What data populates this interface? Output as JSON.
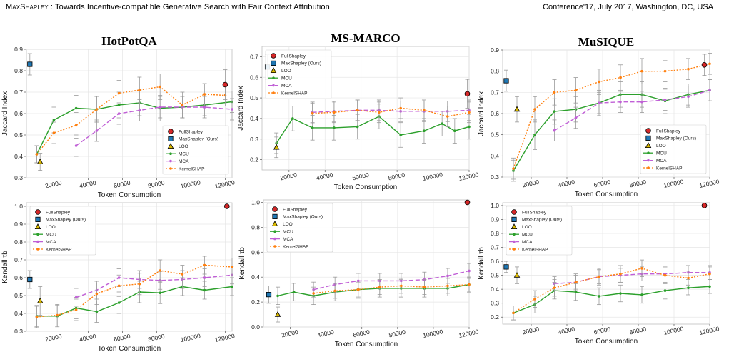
{
  "header": {
    "left_smallcaps": "MaxShapley",
    "left_rest": " : Towards Incentive-compatible Generative Search with Fair Context Attribution",
    "right": "Conference'17, July 2017, Washington, DC, USA"
  },
  "styles": {
    "FullShapley": {
      "color": "#d62728",
      "marker": "circle"
    },
    "MaxShapley (Ours)": {
      "color": "#1f77b4",
      "marker": "square"
    },
    "LOO": {
      "color": "#d9b800",
      "marker": "triangle"
    },
    "MCU": {
      "color": "#2ca02c",
      "marker": "dot",
      "dash": ""
    },
    "MCA": {
      "color": "#c05fd6",
      "marker": "dot",
      "dash": "6,3"
    },
    "KernelSHAP": {
      "color": "#ff7f0e",
      "marker": "dot",
      "dash": "2,2"
    }
  },
  "chart_data": [
    {
      "type": "line",
      "title": "HotPotQA",
      "xlabel": "Token Consumption",
      "ylabel": "Jaccard Index",
      "xlim": [
        4000,
        124000
      ],
      "ylim": [
        0.3,
        0.9
      ],
      "xticks": [
        20000,
        40000,
        60000,
        80000,
        100000,
        120000
      ],
      "yticks": [
        "0.3",
        "0.4",
        "0.5",
        "0.6",
        "0.7",
        "0.8",
        "0.9"
      ],
      "legend": "lower-right",
      "points": [
        {
          "name": "FullShapley",
          "x": 120000,
          "y": 0.735,
          "err": 0.07
        },
        {
          "name": "MaxShapley (Ours)",
          "x": 6000,
          "y": 0.83,
          "err": 0.05
        },
        {
          "name": "LOO",
          "x": 12000,
          "y": 0.375,
          "err": 0.04
        }
      ],
      "series": [
        {
          "name": "MCU",
          "x": [
            10000,
            20000,
            33000,
            45000,
            58000,
            70000,
            82000,
            95000,
            108000,
            124000
          ],
          "y": [
            0.41,
            0.57,
            0.625,
            0.62,
            0.64,
            0.65,
            0.625,
            0.63,
            0.64,
            0.655
          ],
          "err": [
            0.04,
            0.06,
            0.06,
            0.06,
            0.06,
            0.06,
            0.06,
            0.05,
            0.05,
            0.05
          ]
        },
        {
          "name": "MCA",
          "x": [
            33000,
            45000,
            58000,
            70000,
            82000,
            95000,
            108000,
            124000
          ],
          "y": [
            0.45,
            0.52,
            0.6,
            0.615,
            0.63,
            0.63,
            0.63,
            0.62
          ],
          "err": [
            0.05,
            0.05,
            0.05,
            0.05,
            0.05,
            0.05,
            0.05,
            0.05
          ]
        },
        {
          "name": "KernelSHAP",
          "x": [
            10000,
            20000,
            33000,
            45000,
            58000,
            70000,
            82000,
            95000,
            108000,
            120000
          ],
          "y": [
            0.41,
            0.51,
            0.545,
            0.62,
            0.695,
            0.71,
            0.725,
            0.64,
            0.69,
            0.685
          ],
          "err": [
            0.04,
            0.05,
            0.06,
            0.06,
            0.06,
            0.06,
            0.06,
            0.06,
            0.05,
            0.05
          ]
        }
      ]
    },
    {
      "type": "line",
      "title": "MS-MARCO",
      "xlabel": "Token Consumption",
      "ylabel": "Jaccard Index",
      "xlim": [
        5000,
        120000
      ],
      "ylim": [
        0.15,
        0.75
      ],
      "xticks": [
        20000,
        40000,
        60000,
        80000,
        100000,
        120000
      ],
      "yticks": [
        "0.2",
        "0.3",
        "0.4",
        "0.5",
        "0.6",
        "0.7"
      ],
      "legend": "top-left",
      "points": [
        {
          "name": "FullShapley",
          "x": 119000,
          "y": 0.52,
          "err": 0.07
        },
        {
          "name": "MaxShapley (Ours)",
          "x": 8000,
          "y": 0.65,
          "err": 0.06
        },
        {
          "name": "LOO",
          "x": 13000,
          "y": 0.26,
          "err": 0.05
        }
      ],
      "series": [
        {
          "name": "MCU",
          "x": [
            13000,
            22000,
            33000,
            45000,
            58000,
            70000,
            82000,
            95000,
            105000,
            112000,
            120000
          ],
          "y": [
            0.28,
            0.4,
            0.355,
            0.355,
            0.36,
            0.41,
            0.32,
            0.34,
            0.375,
            0.34,
            0.36
          ],
          "err": [
            0.05,
            0.06,
            0.06,
            0.06,
            0.06,
            0.06,
            0.06,
            0.06,
            0.06,
            0.06,
            0.06
          ]
        },
        {
          "name": "MCA",
          "x": [
            33000,
            45000,
            58000,
            70000,
            82000,
            95000,
            108000,
            120000
          ],
          "y": [
            0.43,
            0.435,
            0.44,
            0.44,
            0.435,
            0.435,
            0.435,
            0.44
          ],
          "err": [
            0.05,
            0.05,
            0.05,
            0.05,
            0.05,
            0.05,
            0.05,
            0.05
          ]
        },
        {
          "name": "KernelSHAP",
          "x": [
            33000,
            45000,
            58000,
            70000,
            82000,
            95000,
            108000,
            120000
          ],
          "y": [
            0.425,
            0.43,
            0.44,
            0.43,
            0.45,
            0.44,
            0.41,
            0.43
          ],
          "err": [
            0.05,
            0.05,
            0.05,
            0.05,
            0.05,
            0.05,
            0.05,
            0.05
          ]
        }
      ]
    },
    {
      "type": "line",
      "title": "MuSIQUE",
      "xlabel": "Token Consumption",
      "ylabel": "Jaccard Index",
      "xlim": [
        4000,
        120000
      ],
      "ylim": [
        0.3,
        0.9
      ],
      "xticks": [
        20000,
        40000,
        60000,
        80000,
        100000,
        120000
      ],
      "yticks": [
        "0.3",
        "0.4",
        "0.5",
        "0.6",
        "0.7",
        "0.8",
        "0.9"
      ],
      "legend": "lower-right",
      "points": [
        {
          "name": "FullShapley",
          "x": 117000,
          "y": 0.83,
          "err": 0.05
        },
        {
          "name": "MaxShapley (Ours)",
          "x": 6000,
          "y": 0.755,
          "err": 0.05
        },
        {
          "name": "LOO",
          "x": 12000,
          "y": 0.62,
          "err": 0.06
        }
      ],
      "series": [
        {
          "name": "MCU",
          "x": [
            10000,
            22000,
            33000,
            45000,
            58000,
            70000,
            82000,
            95000,
            108000,
            120000
          ],
          "y": [
            0.33,
            0.5,
            0.61,
            0.62,
            0.65,
            0.69,
            0.69,
            0.66,
            0.69,
            0.71
          ],
          "err": [
            0.05,
            0.07,
            0.06,
            0.06,
            0.06,
            0.06,
            0.06,
            0.06,
            0.05,
            0.05
          ]
        },
        {
          "name": "MCA",
          "x": [
            33000,
            45000,
            58000,
            70000,
            82000,
            95000,
            108000,
            120000
          ],
          "y": [
            0.52,
            0.58,
            0.65,
            0.655,
            0.655,
            0.665,
            0.68,
            0.71
          ],
          "err": [
            0.05,
            0.05,
            0.05,
            0.05,
            0.05,
            0.05,
            0.05,
            0.05
          ]
        },
        {
          "name": "KernelSHAP",
          "x": [
            10000,
            22000,
            33000,
            45000,
            58000,
            70000,
            82000,
            95000,
            108000,
            120000
          ],
          "y": [
            0.34,
            0.62,
            0.7,
            0.71,
            0.75,
            0.77,
            0.8,
            0.8,
            0.81,
            0.835
          ],
          "err": [
            0.05,
            0.06,
            0.06,
            0.06,
            0.06,
            0.06,
            0.06,
            0.05,
            0.05,
            0.05
          ]
        }
      ]
    },
    {
      "type": "line",
      "title": "",
      "xlabel": "Token Consumption",
      "ylabel": "Kendall τb",
      "xlim": [
        4000,
        124000
      ],
      "ylim": [
        0.3,
        1.02
      ],
      "xticks": [
        20000,
        40000,
        60000,
        80000,
        100000,
        120000
      ],
      "yticks": [
        "0.3",
        "0.4",
        "0.5",
        "0.6",
        "0.7",
        "0.8",
        "0.9",
        "1.0"
      ],
      "legend": "top-left",
      "points": [
        {
          "name": "FullShapley",
          "x": 121000,
          "y": 1.0,
          "err": 0
        },
        {
          "name": "MaxShapley (Ours)",
          "x": 6000,
          "y": 0.59,
          "err": 0.05
        },
        {
          "name": "LOO",
          "x": 12000,
          "y": 0.47,
          "err": 0.08
        }
      ],
      "series": [
        {
          "name": "MCU",
          "x": [
            10000,
            22000,
            33000,
            45000,
            58000,
            70000,
            82000,
            95000,
            108000,
            124000
          ],
          "y": [
            0.385,
            0.385,
            0.43,
            0.41,
            0.46,
            0.52,
            0.515,
            0.55,
            0.53,
            0.55
          ],
          "err": [
            0.06,
            0.06,
            0.06,
            0.06,
            0.06,
            0.06,
            0.06,
            0.05,
            0.05,
            0.05
          ]
        },
        {
          "name": "MCA",
          "x": [
            33000,
            45000,
            58000,
            70000,
            82000,
            95000,
            108000,
            124000
          ],
          "y": [
            0.49,
            0.53,
            0.6,
            0.59,
            0.585,
            0.59,
            0.6,
            0.615
          ],
          "err": [
            0.05,
            0.05,
            0.05,
            0.05,
            0.05,
            0.05,
            0.05,
            0.05
          ]
        },
        {
          "name": "KernelSHAP",
          "x": [
            10000,
            22000,
            33000,
            45000,
            58000,
            70000,
            82000,
            95000,
            108000,
            124000
          ],
          "y": [
            0.38,
            0.39,
            0.42,
            0.51,
            0.555,
            0.565,
            0.64,
            0.62,
            0.67,
            0.66
          ],
          "err": [
            0.06,
            0.06,
            0.06,
            0.06,
            0.06,
            0.06,
            0.06,
            0.05,
            0.05,
            0.05
          ]
        }
      ]
    },
    {
      "type": "line",
      "title": "",
      "xlabel": "Token Consumption",
      "ylabel": "Kendall τb",
      "xlim": [
        5000,
        120000
      ],
      "ylim": [
        0.0,
        1.02
      ],
      "xticks": [
        20000,
        40000,
        60000,
        80000,
        100000,
        120000
      ],
      "yticks": [
        "0.0",
        "0.2",
        "0.4",
        "0.6",
        "0.8",
        "1.0"
      ],
      "legend": "top-left",
      "points": [
        {
          "name": "FullShapley",
          "x": 119000,
          "y": 1.0,
          "err": 0
        },
        {
          "name": "MaxShapley (Ours)",
          "x": 8000,
          "y": 0.26,
          "err": 0.07
        },
        {
          "name": "LOO",
          "x": 13000,
          "y": 0.1,
          "err": 0.06
        }
      ],
      "series": [
        {
          "name": "MCU",
          "x": [
            13000,
            22000,
            33000,
            45000,
            58000,
            70000,
            82000,
            95000,
            108000,
            120000
          ],
          "y": [
            0.25,
            0.28,
            0.25,
            0.28,
            0.3,
            0.31,
            0.31,
            0.31,
            0.31,
            0.34
          ],
          "err": [
            0.07,
            0.07,
            0.07,
            0.07,
            0.07,
            0.07,
            0.07,
            0.07,
            0.06,
            0.06
          ]
        },
        {
          "name": "MCA",
          "x": [
            33000,
            45000,
            58000,
            70000,
            82000,
            95000,
            108000,
            120000
          ],
          "y": [
            0.3,
            0.34,
            0.37,
            0.37,
            0.37,
            0.38,
            0.41,
            0.45
          ],
          "err": [
            0.06,
            0.06,
            0.06,
            0.06,
            0.06,
            0.06,
            0.06,
            0.06
          ]
        },
        {
          "name": "KernelSHAP",
          "x": [
            33000,
            45000,
            58000,
            70000,
            82000,
            95000,
            108000,
            120000
          ],
          "y": [
            0.27,
            0.29,
            0.3,
            0.32,
            0.33,
            0.32,
            0.33,
            0.34
          ],
          "err": [
            0.06,
            0.06,
            0.06,
            0.06,
            0.06,
            0.06,
            0.06,
            0.06
          ]
        }
      ]
    },
    {
      "type": "line",
      "title": "",
      "xlabel": "Token Consumption",
      "ylabel": "Kendall τb",
      "xlim": [
        4000,
        120000
      ],
      "ylim": [
        0.15,
        1.02
      ],
      "xticks": [
        20000,
        40000,
        60000,
        80000,
        100000,
        120000
      ],
      "yticks": [
        "0.2",
        "0.3",
        "0.4",
        "0.5",
        "0.6",
        "0.7",
        "0.8",
        "0.9",
        "1.0"
      ],
      "legend": "top-left",
      "points": [
        {
          "name": "FullShapley",
          "x": 117000,
          "y": 1.0,
          "err": 0
        },
        {
          "name": "MaxShapley (Ours)",
          "x": 6000,
          "y": 0.56,
          "err": 0.04
        },
        {
          "name": "LOO",
          "x": 12000,
          "y": 0.5,
          "err": 0.06
        }
      ],
      "series": [
        {
          "name": "MCU",
          "x": [
            10000,
            22000,
            33000,
            45000,
            58000,
            70000,
            82000,
            95000,
            108000,
            120000
          ],
          "y": [
            0.23,
            0.29,
            0.39,
            0.38,
            0.35,
            0.37,
            0.36,
            0.39,
            0.41,
            0.42
          ],
          "err": [
            0.05,
            0.06,
            0.06,
            0.06,
            0.06,
            0.06,
            0.06,
            0.06,
            0.05,
            0.05
          ]
        },
        {
          "name": "MCA",
          "x": [
            33000,
            45000,
            58000,
            70000,
            82000,
            95000,
            108000,
            120000
          ],
          "y": [
            0.44,
            0.45,
            0.49,
            0.5,
            0.51,
            0.51,
            0.52,
            0.52
          ],
          "err": [
            0.05,
            0.05,
            0.05,
            0.05,
            0.05,
            0.05,
            0.05,
            0.05
          ]
        },
        {
          "name": "KernelSHAP",
          "x": [
            10000,
            22000,
            33000,
            45000,
            58000,
            70000,
            82000,
            95000,
            108000,
            120000
          ],
          "y": [
            0.23,
            0.33,
            0.41,
            0.45,
            0.49,
            0.51,
            0.55,
            0.5,
            0.48,
            0.51
          ],
          "err": [
            0.05,
            0.06,
            0.06,
            0.06,
            0.06,
            0.06,
            0.06,
            0.06,
            0.05,
            0.05
          ]
        }
      ]
    }
  ]
}
